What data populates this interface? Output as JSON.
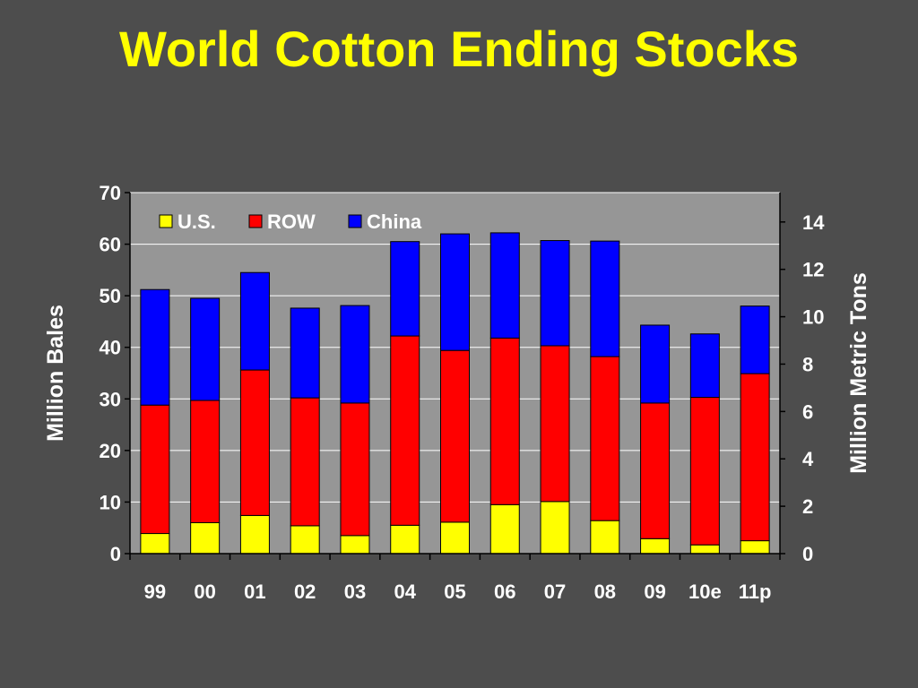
{
  "slide": {
    "title": "World Cotton Ending Stocks"
  },
  "chart_data": {
    "type": "bar",
    "stacked": true,
    "title": "World Cotton Ending Stocks",
    "categories": [
      "99",
      "00",
      "01",
      "02",
      "03",
      "04",
      "05",
      "06",
      "07",
      "08",
      "09",
      "10e",
      "11p"
    ],
    "series": [
      {
        "name": "U.S.",
        "color": "#ffff00",
        "values": [
          3.9,
          6.0,
          7.4,
          5.4,
          3.5,
          5.5,
          6.1,
          9.5,
          10.1,
          6.4,
          2.9,
          1.7,
          2.5
        ]
      },
      {
        "name": "ROW",
        "color": "#ff0000",
        "values": [
          24.9,
          23.7,
          28.2,
          24.8,
          25.7,
          36.7,
          33.3,
          32.3,
          30.2,
          31.8,
          26.3,
          28.6,
          32.4
        ]
      },
      {
        "name": "China",
        "color": "#0000ff",
        "values": [
          22.4,
          19.8,
          18.9,
          17.4,
          18.9,
          18.3,
          22.6,
          20.4,
          20.4,
          22.4,
          15.1,
          12.3,
          13.1
        ]
      }
    ],
    "ylabel": "Million Bales",
    "ylim": [
      0,
      70
    ],
    "yticks": [
      0,
      10,
      20,
      30,
      40,
      50,
      60,
      70
    ],
    "y2label": "Million Metric Tons",
    "y2lim": [
      0,
      15.24
    ],
    "y2ticks": [
      0,
      2,
      4,
      6,
      8,
      10,
      12,
      14
    ],
    "grid": true,
    "legend_position": "top-left",
    "plot_background": "#969696",
    "gridline_color": "#ffffff"
  }
}
